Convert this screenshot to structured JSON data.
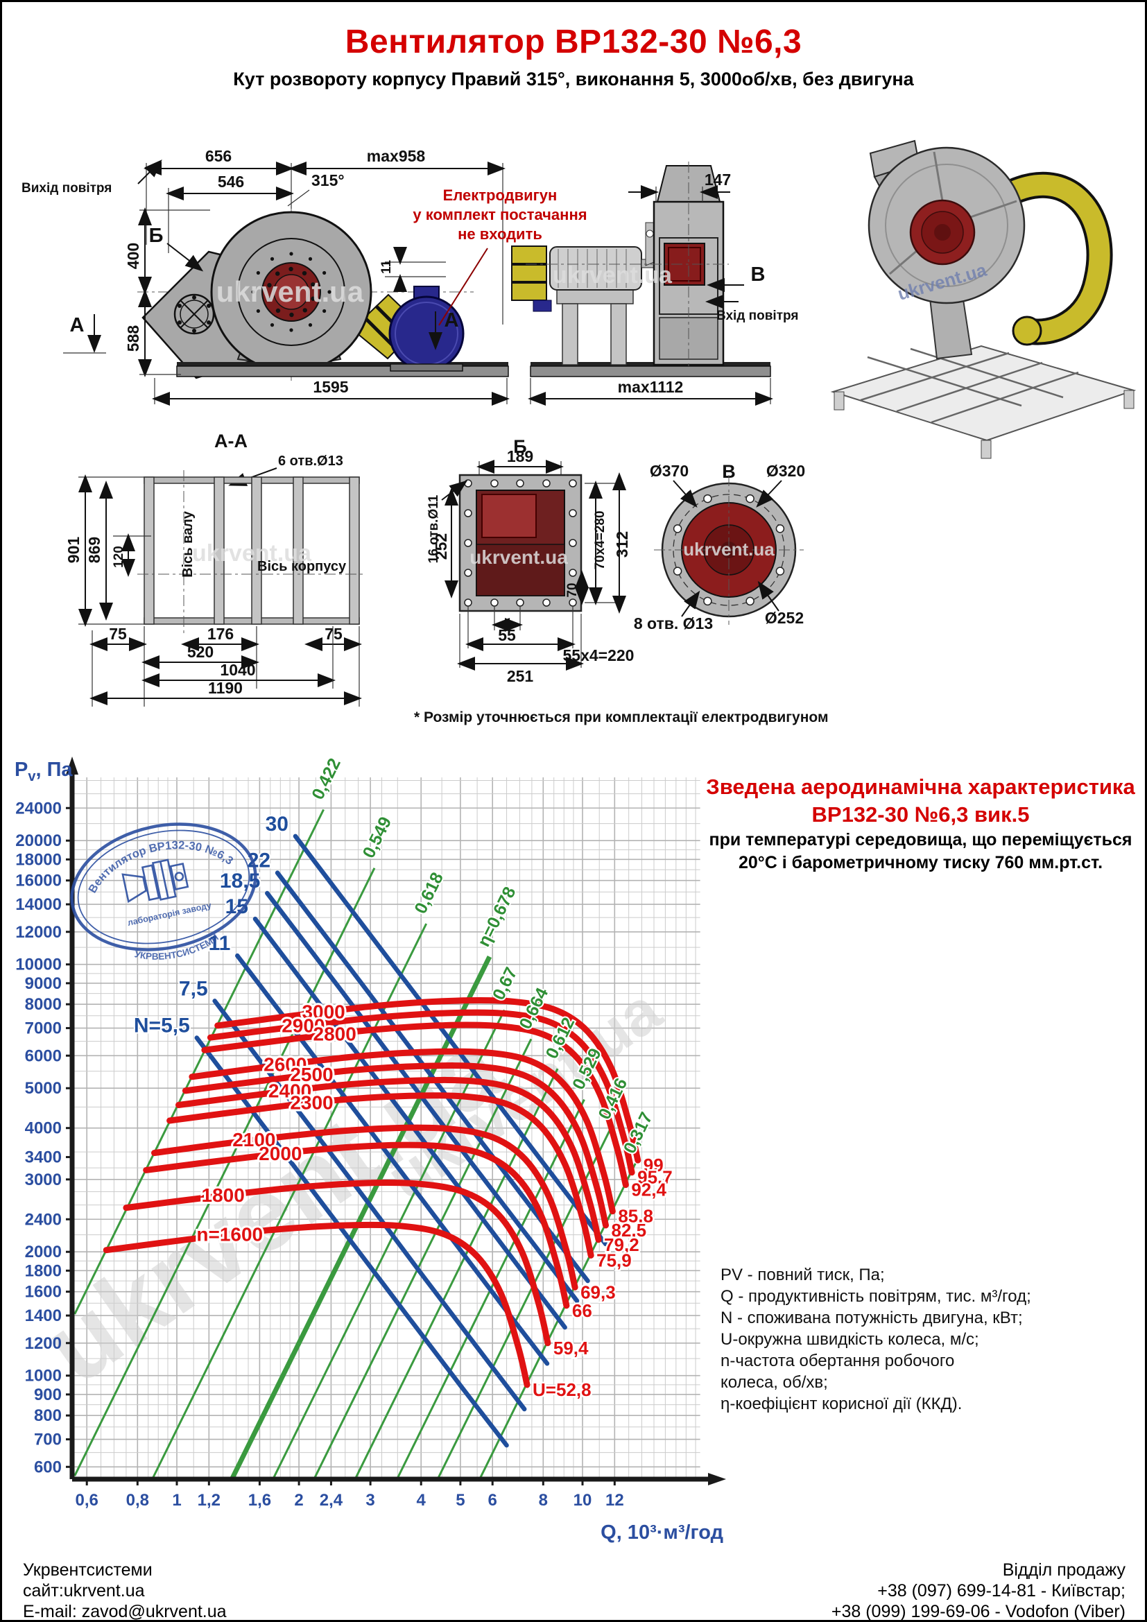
{
  "page": {
    "title": "Вентилятор ВР132-30 №6,3",
    "subtitle": "Кут розвороту корпусу Правий 315°, виконання 5, 3000об/хв, без двигуна"
  },
  "drawings": {
    "watermark": "ukrvent.ua",
    "front": {
      "air_out": "Вихід повітря",
      "marker_b": "Б",
      "marker_a_left": "А",
      "marker_a_right": "А",
      "dims": {
        "d656": "656",
        "d546": "546",
        "dmax958": "max958",
        "a315": "315°",
        "d400": "400",
        "d588": "588",
        "d1595": "1595",
        "d11": "11"
      },
      "motor_note": [
        "Електродвигун",
        "у комплект постачання",
        "не входить"
      ]
    },
    "side": {
      "d147": "147",
      "dmax1112": "max1112",
      "marker_v": "В",
      "air_in": "Вхід повітря"
    },
    "section_aa": {
      "title": "А-А",
      "holes": "6 отв.Ø13",
      "d901": "901",
      "d869": "869",
      "d120": "120",
      "d75l": "75",
      "d176": "176",
      "d520": "520",
      "d1040": "1040",
      "d1190": "1190",
      "d75r": "75",
      "axis_shaft": "Вісь валу",
      "axis_body": "Вісь корпусу"
    },
    "section_b": {
      "title": "Б",
      "d189": "189",
      "d252": "252",
      "holes": "16 отв.Ø11",
      "d70x4": "70x4=280",
      "d312": "312",
      "d70": "70",
      "d55": "55",
      "d55x4": "55x4=220",
      "d251": "251"
    },
    "section_v": {
      "title": "В",
      "d370": "Ø370",
      "d320": "Ø320",
      "holes": "8 отв. Ø13",
      "d252": "Ø252"
    },
    "note": "* Розмір уточнюється при комплектації електродвигуном"
  },
  "chart": {
    "title_line1": "Зведена аеродинамічна характеристика",
    "title_line2": "ВР132-30 №6,3 вик.5",
    "subtitle_line1": "при температурі середовища, що переміщується",
    "subtitle_line2": "20°С і барометричному тиску 760 мм.рт.ст.",
    "y_axis_p": "P",
    "y_axis_sub": "v",
    "y_axis_unit": ", Па",
    "x_axis_label": "Q, 10³·м³/год",
    "legend_lines": [
      "PV - повний тиск, Па;",
      "Q - продуктивність повітрям, тис. м³/год;",
      "N - споживана потужність двигуна, кВт;",
      "U-окружна швидкість колеса, м/с;",
      "n-частота обертання робочого",
      "колеса, об/хв;",
      "η-коефіцієнт корисної дії (ККД)."
    ],
    "stamp": {
      "line1": "Вентилятор ВР132-30 №6,3",
      "line2": "лабораторія заводу",
      "line3": "УКРВЕНТСИСТЕМИ"
    }
  },
  "chart_data": {
    "type": "line",
    "title": "Зведена аеродинамічна характеристика ВР132-30 №6,3 вик.5",
    "xlabel": "Q, 10³·м³/год",
    "ylabel": "Pv, Па",
    "x_scale": "log",
    "y_scale": "log",
    "xlim": [
      0.553,
      19.5
    ],
    "ylim": [
      560,
      28500
    ],
    "grid": true,
    "x_ticks": [
      {
        "v": 0.6,
        "l": "0,6"
      },
      {
        "v": 0.8,
        "l": "0,8"
      },
      {
        "v": 1,
        "l": "1"
      },
      {
        "v": 1.2,
        "l": "1,2"
      },
      {
        "v": 1.6,
        "l": "1,6"
      },
      {
        "v": 2,
        "l": "2"
      },
      {
        "v": 2.4,
        "l": "2,4"
      },
      {
        "v": 3,
        "l": "3"
      },
      {
        "v": 4,
        "l": "4"
      },
      {
        "v": 5,
        "l": "5"
      },
      {
        "v": 6,
        "l": "6"
      },
      {
        "v": 8,
        "l": "8"
      },
      {
        "v": 10,
        "l": "10"
      },
      {
        "v": 12,
        "l": "12"
      }
    ],
    "y_ticks": [
      {
        "v": 24000,
        "l": "24000"
      },
      {
        "v": 20000,
        "l": "20000"
      },
      {
        "v": 18000,
        "l": "18000"
      },
      {
        "v": 16000,
        "l": "16000"
      },
      {
        "v": 14000,
        "l": "14000"
      },
      {
        "v": 12000,
        "l": "12000"
      },
      {
        "v": 10000,
        "l": "10000"
      },
      {
        "v": 9000,
        "l": "9000"
      },
      {
        "v": 8000,
        "l": "8000"
      },
      {
        "v": 7000,
        "l": "7000"
      },
      {
        "v": 6000,
        "l": "6000"
      },
      {
        "v": 5000,
        "l": "5000"
      },
      {
        "v": 4000,
        "l": "4000"
      },
      {
        "v": 3400,
        "l": "3400"
      },
      {
        "v": 3000,
        "l": "3000"
      },
      {
        "v": 2400,
        "l": "2400"
      },
      {
        "v": 2000,
        "l": "2000"
      },
      {
        "v": 1800,
        "l": "1800"
      },
      {
        "v": 1600,
        "l": "1600"
      },
      {
        "v": 1400,
        "l": "1400"
      },
      {
        "v": 1200,
        "l": "1200"
      },
      {
        "v": 1000,
        "l": "1000"
      },
      {
        "v": 900,
        "l": "900"
      },
      {
        "v": 800,
        "l": "800"
      },
      {
        "v": 700,
        "l": "700"
      },
      {
        "v": 600,
        "l": "600"
      }
    ],
    "power_curves_kW": [
      {
        "label": "30",
        "points": [
          [
            1.96,
            20500
          ],
          [
            2.94,
            12100
          ],
          [
            4.31,
            7360
          ],
          [
            6.27,
            4510
          ],
          [
            8.82,
            2900
          ],
          [
            11.4,
            2090
          ]
        ]
      },
      {
        "label": "22",
        "points": [
          [
            1.77,
            16700
          ],
          [
            2.66,
            9850
          ],
          [
            3.89,
            6000
          ],
          [
            5.66,
            3680
          ],
          [
            7.97,
            2360
          ],
          [
            10.3,
            1700
          ]
        ]
      },
      {
        "label": "18,5",
        "points": [
          [
            1.67,
            14900
          ],
          [
            2.51,
            8790
          ],
          [
            3.67,
            5350
          ],
          [
            5.34,
            3280
          ],
          [
            7.52,
            2110
          ],
          [
            9.69,
            1520
          ]
        ]
      },
      {
        "label": "15",
        "points": [
          [
            1.56,
            12900
          ],
          [
            2.34,
            7610
          ],
          [
            3.43,
            4630
          ],
          [
            4.99,
            2840
          ],
          [
            7.02,
            1820
          ],
          [
            9.05,
            1310
          ]
        ]
      },
      {
        "label": "11",
        "points": [
          [
            1.41,
            10500
          ],
          [
            2.12,
            6190
          ],
          [
            3.1,
            3770
          ],
          [
            4.51,
            2310
          ],
          [
            6.35,
            1480
          ],
          [
            8.18,
            1070
          ]
        ]
      },
      {
        "label": "7,5",
        "points": [
          [
            1.24,
            8150
          ],
          [
            1.86,
            4810
          ],
          [
            2.73,
            2930
          ],
          [
            3.97,
            1790
          ],
          [
            5.58,
            1150
          ],
          [
            7.19,
            829
          ]
        ]
      },
      {
        "label": "N=5,5",
        "points": [
          [
            1.12,
            6630
          ],
          [
            1.68,
            3910
          ],
          [
            2.46,
            2380
          ],
          [
            3.58,
            1460
          ],
          [
            5.04,
            937
          ],
          [
            6.5,
            677
          ]
        ]
      }
    ],
    "speed_curves_rpm": [
      {
        "label": "3000",
        "label_q": 2.3,
        "u_label": "99",
        "points": [
          [
            1.26,
            7100
          ],
          [
            1.97,
            7520
          ],
          [
            3.19,
            7950
          ],
          [
            4.88,
            8160
          ],
          [
            6.75,
            8120
          ],
          [
            8.63,
            7730
          ],
          [
            10.31,
            6860
          ],
          [
            11.81,
            5560
          ],
          [
            13.03,
            4110
          ],
          [
            13.69,
            3340
          ]
        ]
      },
      {
        "label": "2900",
        "label_q": 2.05,
        "u_label": "95,7",
        "points": [
          [
            1.21,
            6640
          ],
          [
            1.9,
            7030
          ],
          [
            3.08,
            7420
          ],
          [
            4.71,
            7620
          ],
          [
            6.53,
            7590
          ],
          [
            8.34,
            7230
          ],
          [
            9.97,
            6410
          ],
          [
            11.42,
            5190
          ],
          [
            12.6,
            3840
          ],
          [
            13.23,
            3120
          ]
        ]
      },
      {
        "label": "2800",
        "label_q": 2.45,
        "u_label": "92,4",
        "points": [
          [
            1.17,
            6190
          ],
          [
            1.84,
            6550
          ],
          [
            2.98,
            6920
          ],
          [
            4.55,
            7110
          ],
          [
            6.3,
            7070
          ],
          [
            8.05,
            6740
          ],
          [
            9.63,
            5970
          ],
          [
            11.03,
            4840
          ],
          [
            12.16,
            3580
          ],
          [
            12.78,
            2910
          ]
        ]
      },
      {
        "label": "2600",
        "label_q": 1.85,
        "u_label": "85,8",
        "points": [
          [
            1.09,
            5330
          ],
          [
            1.71,
            5650
          ],
          [
            2.76,
            5970
          ],
          [
            4.23,
            6130
          ],
          [
            5.85,
            6100
          ],
          [
            7.48,
            5810
          ],
          [
            8.94,
            5150
          ],
          [
            10.24,
            4170
          ],
          [
            11.29,
            3090
          ],
          [
            11.86,
            2510
          ]
        ]
      },
      {
        "label": "2500",
        "label_q": 2.15,
        "u_label": "82,5",
        "points": [
          [
            1.05,
            4930
          ],
          [
            1.64,
            5220
          ],
          [
            2.66,
            5520
          ],
          [
            4.06,
            5660
          ],
          [
            5.63,
            5640
          ],
          [
            7.19,
            5370
          ],
          [
            8.59,
            4760
          ],
          [
            9.84,
            3860
          ],
          [
            10.86,
            2860
          ],
          [
            11.41,
            2320
          ]
        ]
      },
      {
        "label": "2400",
        "label_q": 1.9,
        "u_label": "79,2",
        "points": [
          [
            1.01,
            4550
          ],
          [
            1.58,
            4820
          ],
          [
            2.55,
            5090
          ],
          [
            3.9,
            5220
          ],
          [
            5.4,
            5200
          ],
          [
            6.9,
            4950
          ],
          [
            8.25,
            4390
          ],
          [
            9.45,
            3560
          ],
          [
            10.43,
            2630
          ],
          [
            10.95,
            2140
          ]
        ]
      },
      {
        "label": "2300",
        "label_q": 2.15,
        "u_label": "75,9",
        "points": [
          [
            0.96,
            4170
          ],
          [
            1.51,
            4420
          ],
          [
            2.44,
            4670
          ],
          [
            3.74,
            4790
          ],
          [
            5.18,
            4770
          ],
          [
            6.61,
            4550
          ],
          [
            7.91,
            4030
          ],
          [
            9.06,
            3260
          ],
          [
            9.99,
            2420
          ],
          [
            10.49,
            1960
          ]
        ]
      },
      {
        "label": "2100",
        "label_q": 1.55,
        "u_label": "69,3",
        "points": [
          [
            0.88,
            3480
          ],
          [
            1.38,
            3690
          ],
          [
            2.23,
            3890
          ],
          [
            3.41,
            4000
          ],
          [
            4.73,
            3980
          ],
          [
            6.04,
            3790
          ],
          [
            7.22,
            3360
          ],
          [
            8.27,
            2720
          ],
          [
            9.12,
            2020
          ],
          [
            9.58,
            1640
          ]
        ]
      },
      {
        "label": "2000",
        "label_q": 1.8,
        "u_label": "66",
        "points": [
          [
            0.84,
            3160
          ],
          [
            1.31,
            3340
          ],
          [
            2.13,
            3530
          ],
          [
            3.25,
            3630
          ],
          [
            4.5,
            3610
          ],
          [
            5.75,
            3440
          ],
          [
            6.88,
            3050
          ],
          [
            7.88,
            2470
          ],
          [
            8.69,
            1830
          ],
          [
            9.13,
            1480
          ]
        ]
      },
      {
        "label": "1800",
        "label_q": 1.3,
        "u_label": "59,4",
        "points": [
          [
            0.75,
            2560
          ],
          [
            1.18,
            2710
          ],
          [
            1.91,
            2860
          ],
          [
            2.93,
            2940
          ],
          [
            4.05,
            2920
          ],
          [
            5.18,
            2780
          ],
          [
            6.19,
            2470
          ],
          [
            7.09,
            2000
          ],
          [
            7.82,
            1480
          ],
          [
            8.21,
            1200
          ]
        ]
      },
      {
        "label": "n=1600",
        "label_q": 1.35,
        "u_label": "U=52,8",
        "points": [
          [
            0.67,
            2020
          ],
          [
            1.05,
            2140
          ],
          [
            1.7,
            2260
          ],
          [
            2.6,
            2320
          ],
          [
            3.6,
            2310
          ],
          [
            4.6,
            2200
          ],
          [
            5.5,
            1950
          ],
          [
            6.3,
            1580
          ],
          [
            6.95,
            1170
          ],
          [
            7.3,
            950
          ]
        ]
      }
    ],
    "efficiency_lines": [
      {
        "label": "0,422",
        "c": 4500,
        "q_bottom": 0.56,
        "q_top": 2.3,
        "bold": false
      },
      {
        "label": "0,549",
        "c": 1820,
        "q_bottom": 0.56,
        "q_top": 3.07,
        "bold": false
      },
      {
        "label": "0,618",
        "c": 740,
        "q_bottom": 0.87,
        "q_top": 4.12,
        "bold": false
      },
      {
        "label": "η=0,678",
        "c": 300,
        "q_bottom": 1.37,
        "q_top": 5.9,
        "bold": true
      },
      {
        "label": "0,67",
        "c": 188,
        "q_bottom": 1.73,
        "q_top": 6.42,
        "bold": false
      },
      {
        "label": "0,664",
        "c": 118,
        "q_bottom": 2.18,
        "q_top": 7.47,
        "bold": false
      },
      {
        "label": "0,612",
        "c": 74,
        "q_bottom": 2.75,
        "q_top": 8.68,
        "bold": false
      },
      {
        "label": "0,529",
        "c": 46,
        "q_bottom": 3.49,
        "q_top": 10.1,
        "bold": false
      },
      {
        "label": "0,416",
        "c": 29,
        "q_bottom": 4.39,
        "q_top": 11.7,
        "bold": false
      },
      {
        "label": "0,317",
        "c": 18,
        "q_bottom": 5.58,
        "q_top": 13.5,
        "bold": false
      }
    ],
    "efficiency_model": "P = c·Q² (log-log straight lines)"
  },
  "footer": {
    "company": "Укрвентсистеми",
    "site": "сайт:ukrvent.ua",
    "email": "E-mail: zavod@ukrvent.ua",
    "sales": "Відділ продажу",
    "phone1": "+38 (097) 699-14-81 - Київстар;",
    "phone2": "+38 (099) 199-69-06 - Vodofon (Viber)"
  }
}
